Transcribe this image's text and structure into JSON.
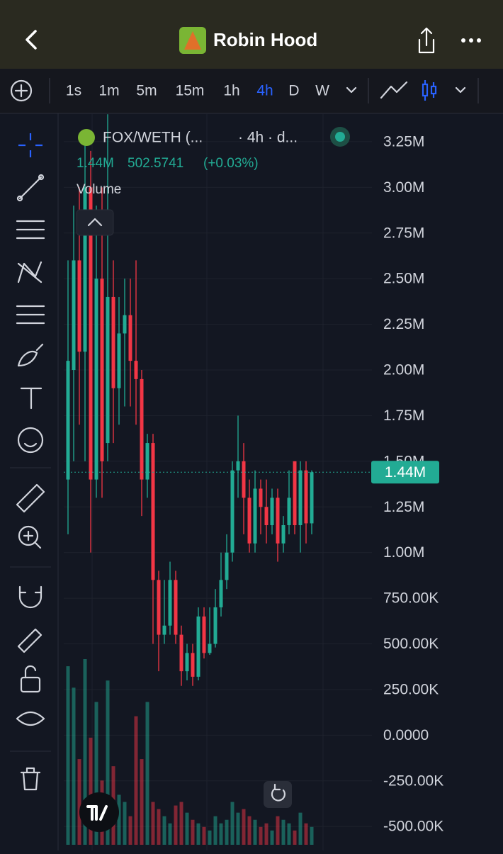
{
  "header": {
    "title": "Robin Hood"
  },
  "toolbar": {
    "intervals": [
      "1s",
      "1m",
      "5m",
      "15m",
      "1h",
      "4h",
      "D",
      "W"
    ],
    "active": "4h"
  },
  "chart_data": {
    "type": "candlestick",
    "symbol": "FOX/WETH (...",
    "interval_info": "· 4h · d...",
    "legend_values": [
      "502.5741",
      "(+0.03%)"
    ],
    "volume_label": "Volume",
    "ylim": [
      -612000,
      3405000
    ],
    "yticks": [
      {
        "value": 3250000,
        "label": "3.25M"
      },
      {
        "value": 3000000,
        "label": "3.00M"
      },
      {
        "value": 2750000,
        "label": "2.75M"
      },
      {
        "value": 2500000,
        "label": "2.50M"
      },
      {
        "value": 2250000,
        "label": "2.25M"
      },
      {
        "value": 2000000,
        "label": "2.00M"
      },
      {
        "value": 1750000,
        "label": "1.75M"
      },
      {
        "value": 1500000,
        "label": "1.50M"
      },
      {
        "value": 1250000,
        "label": "1.25M"
      },
      {
        "value": 1000000,
        "label": "1.00M"
      },
      {
        "value": 750000,
        "label": "750.00K"
      },
      {
        "value": 500000,
        "label": "500.00K"
      },
      {
        "value": 250000,
        "label": "250.00K"
      },
      {
        "value": 0,
        "label": "0.0000"
      },
      {
        "value": -250000,
        "label": "-250.00K"
      },
      {
        "value": -500000,
        "label": "-500.00K"
      }
    ],
    "open": [
      1400000,
      2000000,
      2600000,
      2100000,
      3000000,
      1400000,
      2500000,
      1600000,
      2400000,
      1900000,
      2200000,
      2300000,
      2050000,
      1950000,
      1400000,
      1600000,
      850000,
      550000,
      600000,
      850000,
      550000,
      350000,
      450000,
      320000,
      650000,
      450000,
      500000,
      700000,
      850000,
      1000000,
      1450000,
      1500000,
      1300000,
      1050000,
      1350000,
      1250000,
      1150000,
      1300000,
      1050000,
      1150000,
      1500000,
      1150000,
      1450000,
      1160000
    ],
    "high": [
      2600000,
      2900000,
      3000000,
      3300000,
      3200000,
      2900000,
      3000000,
      3400000,
      2600000,
      2400000,
      2500000,
      2500000,
      2600000,
      2000000,
      1650000,
      1650000,
      900000,
      850000,
      950000,
      900000,
      600000,
      500000,
      500000,
      700000,
      700000,
      700000,
      800000,
      1000000,
      1100000,
      1500000,
      1750000,
      1600000,
      1400000,
      1450000,
      1400000,
      1400000,
      1350000,
      1350000,
      1200000,
      1450000,
      1500000,
      1500000,
      1500000,
      1450000
    ],
    "low": [
      1100000,
      1500000,
      1700000,
      1500000,
      1000000,
      1300000,
      1300000,
      1500000,
      1600000,
      1700000,
      1800000,
      1800000,
      1700000,
      1200000,
      1300000,
      500000,
      350000,
      500000,
      550000,
      500000,
      270000,
      300000,
      270000,
      300000,
      420000,
      440000,
      480000,
      650000,
      800000,
      950000,
      1300000,
      1100000,
      1000000,
      1000000,
      1100000,
      1050000,
      1100000,
      950000,
      1000000,
      1100000,
      1100000,
      1000000,
      1050000,
      1100000
    ],
    "close": [
      2050000,
      2600000,
      2100000,
      3000000,
      1400000,
      2500000,
      1500000,
      2400000,
      1900000,
      2200000,
      2300000,
      2050000,
      1950000,
      1400000,
      1600000,
      850000,
      550000,
      600000,
      850000,
      550000,
      350000,
      450000,
      320000,
      650000,
      450000,
      500000,
      700000,
      850000,
      1000000,
      1450000,
      1500000,
      1300000,
      1050000,
      1350000,
      1250000,
      1150000,
      1300000,
      1050000,
      1150000,
      1300000,
      1150000,
      1450000,
      1160000,
      1440000
    ],
    "volume": [
      250,
      220,
      120,
      260,
      150,
      200,
      90,
      230,
      110,
      70,
      60,
      40,
      180,
      120,
      200,
      60,
      50,
      40,
      30,
      55,
      60,
      45,
      35,
      30,
      25,
      20,
      40,
      30,
      35,
      60,
      45,
      50,
      40,
      35,
      25,
      30,
      20,
      40,
      35,
      30,
      20,
      45,
      30,
      25
    ],
    "colors": {
      "up": "#22ab94",
      "down": "#f23645"
    },
    "last_price": {
      "value": 1440000,
      "label": "1.44M"
    }
  }
}
